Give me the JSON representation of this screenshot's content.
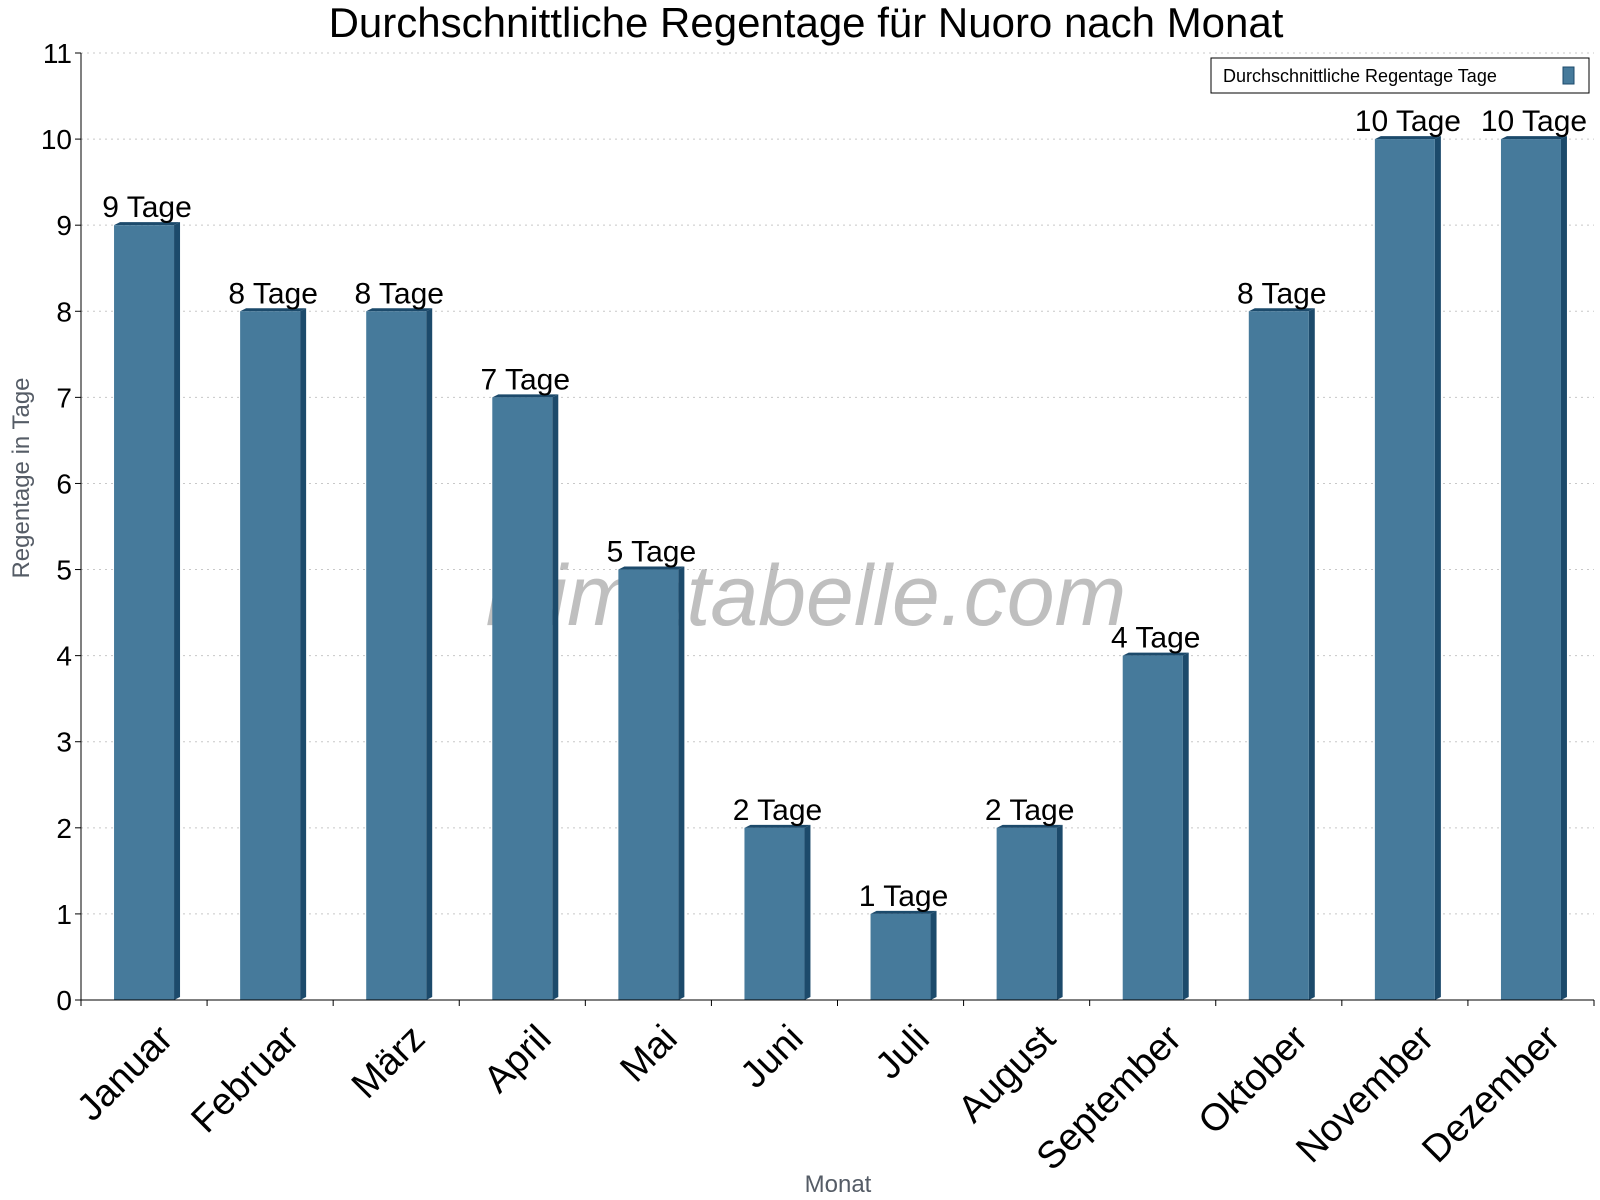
{
  "chart_data": {
    "type": "bar",
    "title": "Durchschnittliche Regentage für Nuoro nach Monat",
    "xlabel": "Monat",
    "ylabel": "Regentage in Tage",
    "categories": [
      "Januar",
      "Februar",
      "März",
      "April",
      "Mai",
      "Juni",
      "Juli",
      "August",
      "September",
      "Oktober",
      "November",
      "Dezember"
    ],
    "series": [
      {
        "name": "Durchschnittliche Regentage Tage",
        "values": [
          9,
          8,
          8,
          7,
          5,
          2,
          1,
          2,
          4,
          8,
          10,
          10
        ],
        "data_labels": [
          "9 Tage",
          "8 Tage",
          "8 Tage",
          "7 Tage",
          "5 Tage",
          "2 Tage",
          "1 Tage",
          "2 Tage",
          "4 Tage",
          "8 Tage",
          "10 Tage",
          "10 Tage"
        ],
        "color": "#467a9b",
        "side_color": "#1c4a6b"
      }
    ],
    "ylim": [
      0,
      11
    ],
    "yticks": [
      0,
      1,
      2,
      3,
      4,
      5,
      6,
      7,
      8,
      9,
      10,
      11
    ],
    "grid": true,
    "legend_position": "top-right"
  },
  "watermark": "klimatabelle.com"
}
